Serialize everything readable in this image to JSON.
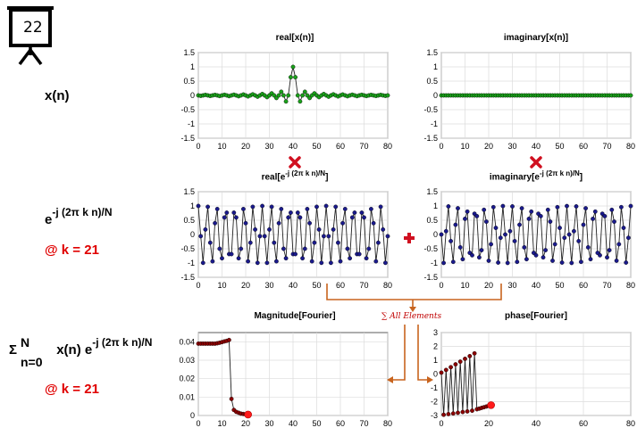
{
  "slide": {
    "number": "22"
  },
  "labels": {
    "xn": "x(n)",
    "kernel_base": "e",
    "kernel_exp": "-j (2π k n)/N",
    "at_k": "@ k = 21",
    "sum_sigma": "Σ",
    "sum_upper": "N",
    "sum_lower": "n=0",
    "sum_body": "x(n) e",
    "sum_exp": "-j (2π k n)/N",
    "sum_at_k": "@ k = 21"
  },
  "annotations": {
    "all_elements": "∑ All Elements"
  },
  "colors": {
    "green": "#1aa01a",
    "navy": "#1a1a8c",
    "darkred": "#8b0000",
    "bright_red": "#ff1a1a",
    "orange": "#c8641e",
    "grid": "#dcdcdc",
    "accent_red": "#e00000"
  },
  "chart_data": [
    {
      "id": "real_x",
      "type": "line",
      "title": "real[x(n)]",
      "x_range": [
        0,
        80
      ],
      "xlim": [
        0,
        80
      ],
      "xticks": [
        0,
        10,
        20,
        30,
        40,
        50,
        60,
        70,
        80
      ],
      "ylim": [
        -1.5,
        1.5
      ],
      "yticks": [
        1.5,
        1,
        0.5,
        0,
        -0.5,
        -1,
        -1.5
      ],
      "ytick_labels": [
        "1.5",
        "1",
        "0.5",
        "0",
        "-0.5",
        "-1",
        "-1.5"
      ],
      "grid": true,
      "marker_color": "#1aa01a",
      "signal": "sinc",
      "center": 40,
      "peak": 1
    },
    {
      "id": "imag_x",
      "type": "line",
      "title": "imaginary[x(n)]",
      "x_range": [
        0,
        80
      ],
      "xlim": [
        0,
        80
      ],
      "xticks": [
        0,
        10,
        20,
        30,
        40,
        50,
        60,
        70,
        80
      ],
      "ylim": [
        -1.5,
        1.5
      ],
      "yticks": [
        1.5,
        1,
        0.5,
        0,
        -0.5,
        -1,
        -1.5
      ],
      "ytick_labels": [
        "1.5",
        "1",
        "0.5",
        "0",
        "-0.5",
        "-1",
        "-1.5"
      ],
      "grid": true,
      "marker_color": "#1aa01a",
      "signal": "zero"
    },
    {
      "id": "real_e",
      "type": "line",
      "title_base": "real[e",
      "title_exp": "-j (2π k n)/N",
      "title_close": "]",
      "x_range": [
        0,
        80
      ],
      "xlim": [
        0,
        80
      ],
      "xticks": [
        0,
        10,
        20,
        30,
        40,
        50,
        60,
        70,
        80
      ],
      "ylim": [
        -1.5,
        1.5
      ],
      "yticks": [
        1.5,
        1,
        0.5,
        0,
        -0.5,
        -1,
        -1.5
      ],
      "ytick_labels": [
        "1.5",
        "1",
        "0.5",
        "0",
        "-0.5",
        "-1",
        "-1.5"
      ],
      "grid": true,
      "marker_color": "#1a1a8c",
      "signal": "cos",
      "k": 21,
      "N": 81
    },
    {
      "id": "imag_e",
      "type": "line",
      "title_base": "imaginary[e",
      "title_exp": "-j (2π k n)/N",
      "title_close": "]",
      "x_range": [
        0,
        80
      ],
      "xlim": [
        0,
        80
      ],
      "xticks": [
        0,
        10,
        20,
        30,
        40,
        50,
        60,
        70,
        80
      ],
      "ylim": [
        -1.5,
        1.5
      ],
      "yticks": [
        1.5,
        1,
        0.5,
        0,
        -0.5,
        -1,
        -1.5
      ],
      "ytick_labels": [
        "1.5",
        "1",
        "0.5",
        "0",
        "-0.5",
        "-1",
        "-1.5"
      ],
      "grid": true,
      "marker_color": "#1a1a8c",
      "signal": "negsin",
      "k": 21,
      "N": 81
    },
    {
      "id": "mag",
      "type": "line",
      "title": "Magnitude[Fourier]",
      "x_range": [
        0,
        21
      ],
      "xlim": [
        0,
        80
      ],
      "xticks": [
        0,
        10,
        20,
        30,
        40,
        50,
        60,
        70,
        80
      ],
      "ylim": [
        0,
        0.045
      ],
      "yticks": [
        0.04,
        0.03,
        0.02,
        0.01,
        0
      ],
      "ytick_labels": [
        "0.04",
        "0.03",
        "0.02",
        "0.01",
        "0"
      ],
      "grid": true,
      "marker_color": "#8b0000",
      "values": [
        0.039,
        0.039,
        0.039,
        0.039,
        0.039,
        0.039,
        0.039,
        0.039,
        0.0392,
        0.0395,
        0.0398,
        0.0402,
        0.0405,
        0.041,
        0.009,
        0.003,
        0.002,
        0.0015,
        0.001,
        0.0008,
        0.0006,
        0.0005
      ],
      "last_index": 21,
      "last_value": 0.0005
    },
    {
      "id": "phase",
      "type": "line",
      "title": "phase[Fourier]",
      "x_range": [
        0,
        21
      ],
      "xlim": [
        0,
        80
      ],
      "xticks": [
        0,
        20,
        40,
        60,
        80
      ],
      "ylim": [
        -3,
        3
      ],
      "yticks": [
        3,
        2,
        1,
        0,
        -1,
        -2,
        -3
      ],
      "ytick_labels": [
        "3",
        "2",
        "1",
        "0",
        "-1",
        "-2",
        "-3"
      ],
      "grid": true,
      "marker_color": "#8b0000",
      "values": [
        0.1,
        -2.95,
        0.3,
        -2.9,
        0.5,
        -2.85,
        0.7,
        -2.8,
        0.9,
        -2.75,
        1.1,
        -2.7,
        1.3,
        -2.65,
        1.5,
        -2.55,
        -2.5,
        -2.45,
        -2.4,
        -2.35,
        -2.3,
        -2.25
      ],
      "last_index": 21,
      "last_value": -2.25
    }
  ]
}
